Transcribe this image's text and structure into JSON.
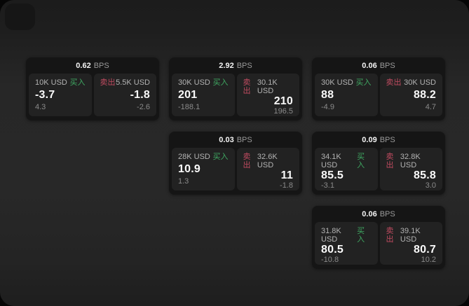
{
  "labels": {
    "bps_unit": "BPS",
    "buy": "买入",
    "sell": "卖出"
  },
  "colors": {
    "buy_green": "#3fa862",
    "sell_red": "#c04b60",
    "background": "#272727",
    "card": "#151515",
    "panel": "#222222",
    "price_text": "#fafafa",
    "muted_text": "#8a8a8a"
  },
  "cards": [
    {
      "bps": "0.62",
      "buy": {
        "amount": "10K USD",
        "price": "-3.7",
        "delta": "4.3"
      },
      "sell": {
        "amount": "5.5K USD",
        "price": "-1.8",
        "delta": "-2.6"
      }
    },
    {
      "bps": "2.92",
      "buy": {
        "amount": "30K USD",
        "price": "201",
        "delta": "-188.1"
      },
      "sell": {
        "amount": "30.1K USD",
        "price": "210",
        "delta": "196.5"
      }
    },
    {
      "bps": "0.06",
      "buy": {
        "amount": "30K USD",
        "price": "88",
        "delta": "-4.9"
      },
      "sell": {
        "amount": "30K USD",
        "price": "88.2",
        "delta": "4.7"
      }
    },
    {
      "bps": "0.03",
      "buy": {
        "amount": "28K USD",
        "price": "10.9",
        "delta": "1.3"
      },
      "sell": {
        "amount": "32.6K USD",
        "price": "11",
        "delta": "-1.8"
      }
    },
    {
      "bps": "0.09",
      "buy": {
        "amount": "34.1K USD",
        "price": "85.5",
        "delta": "-3.1"
      },
      "sell": {
        "amount": "32.8K USD",
        "price": "85.8",
        "delta": "3.0"
      }
    },
    {
      "bps": "0.06",
      "buy": {
        "amount": "31.8K USD",
        "price": "80.5",
        "delta": "-10.8"
      },
      "sell": {
        "amount": "39.1K USD",
        "price": "80.7",
        "delta": "10.2"
      }
    }
  ]
}
